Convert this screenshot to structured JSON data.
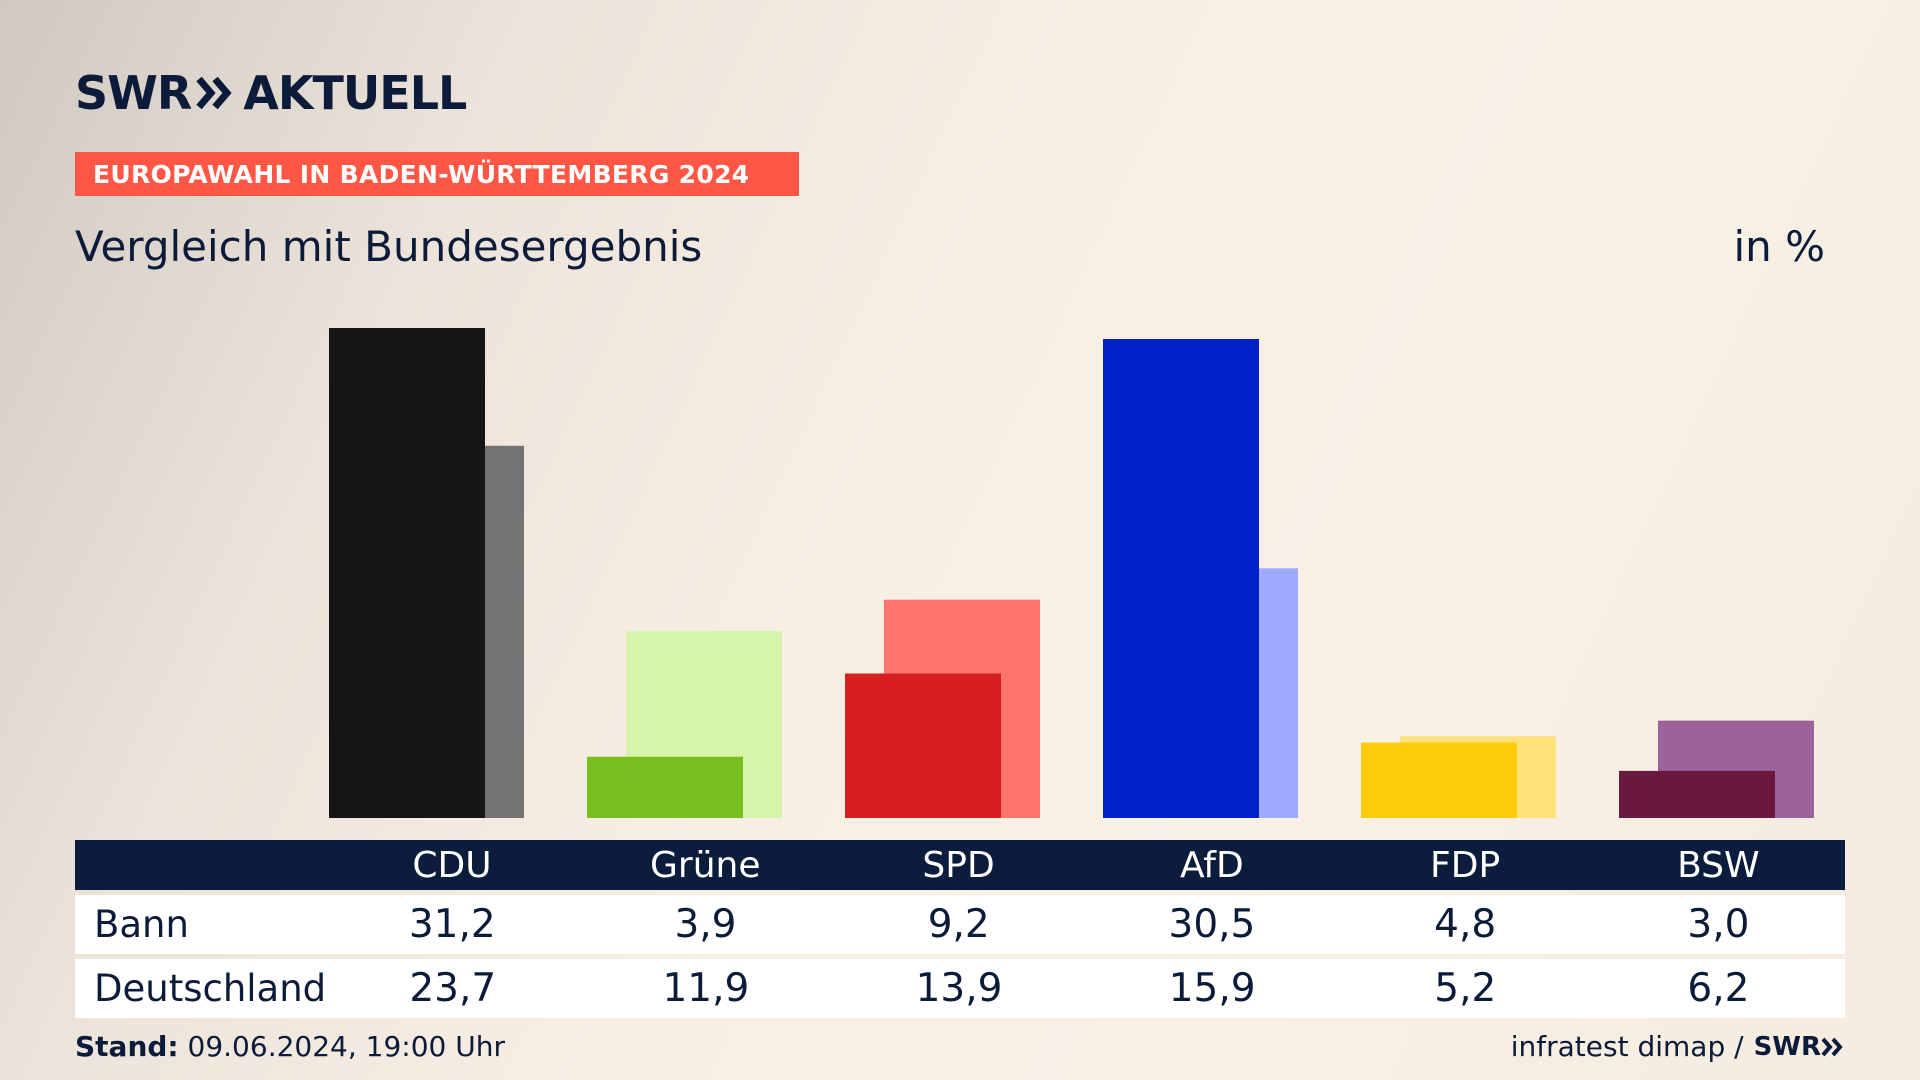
{
  "header": {
    "logo_swr": "SWR",
    "logo_aktuell": "AKTUELL",
    "banner": "EUROPAWAHL IN BADEN-WÜRTTEMBERG 2024",
    "subtitle": "Vergleich mit Bundesergebnis",
    "unit": "in %"
  },
  "chart_data": {
    "type": "bar",
    "categories": [
      "CDU",
      "Grüne",
      "SPD",
      "AfD",
      "FDP",
      "BSW"
    ],
    "series": [
      {
        "name": "Bann",
        "values": [
          31.2,
          3.9,
          9.2,
          30.5,
          4.8,
          3.0
        ],
        "colors": [
          "#151515",
          "#78be1e",
          "#d81f1f",
          "#0021c8",
          "#ffcc0c",
          "#6b1841"
        ]
      },
      {
        "name": "Deutschland",
        "values": [
          23.7,
          11.9,
          13.9,
          15.9,
          5.2,
          6.2
        ],
        "colors": [
          "#757371",
          "#d7f5aa",
          "#ff746c",
          "#9faaff",
          "#ffe27a",
          "#9c6299"
        ]
      }
    ],
    "ylim": [
      0,
      32
    ]
  },
  "table": {
    "headers": [
      "CDU",
      "Grüne",
      "SPD",
      "AfD",
      "FDP",
      "BSW"
    ],
    "rows": [
      {
        "label": "Bann",
        "values": [
          "31,2",
          "3,9",
          "9,2",
          "30,5",
          "4,8",
          "3,0"
        ]
      },
      {
        "label": "Deutschland",
        "values": [
          "23,7",
          "11,9",
          "13,9",
          "15,9",
          "5,2",
          "6,2"
        ]
      }
    ]
  },
  "footer": {
    "stand_label": "Stand:",
    "stand_value": "09.06.2024, 19:00 Uhr",
    "source": "infratest dimap /",
    "source_logo": "SWR"
  }
}
